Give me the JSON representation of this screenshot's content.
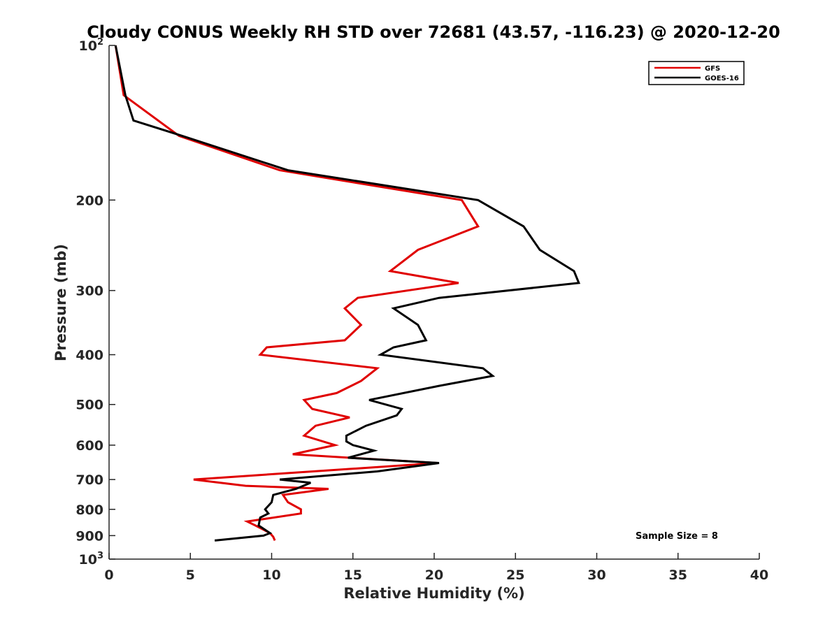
{
  "chart_data": {
    "type": "line",
    "title": "Cloudy CONUS Weekly RH STD over 72681 (43.57, -116.23) @ 2020-12-20",
    "xlabel": "Relative Humidity (%)",
    "ylabel": "Pressure (mb)",
    "xlim": [
      0,
      40
    ],
    "ylim": [
      100,
      1000
    ],
    "y_scale": "log",
    "y_reversed": true,
    "grid": false,
    "legend_position": "top-right",
    "x_ticks": [
      "0",
      "5",
      "10",
      "15",
      "20",
      "25",
      "30",
      "35",
      "40"
    ],
    "y_ticks": [
      {
        "value": 100,
        "base": "10",
        "exp": "2"
      },
      {
        "value": 200,
        "label": "200"
      },
      {
        "value": 300,
        "label": "300"
      },
      {
        "value": 400,
        "label": "400"
      },
      {
        "value": 500,
        "label": "500"
      },
      {
        "value": 600,
        "label": "600"
      },
      {
        "value": 700,
        "label": "700"
      },
      {
        "value": 800,
        "label": "800"
      },
      {
        "value": 900,
        "label": "900"
      },
      {
        "value": 1000,
        "base": "10",
        "exp": "3"
      }
    ],
    "annotation": "Sample Size = 8",
    "series": [
      {
        "name": "GFS",
        "color": "#e00000",
        "points": [
          [
            0.4,
            100
          ],
          [
            0.9,
            125
          ],
          [
            4.3,
            150
          ],
          [
            10.5,
            175
          ],
          [
            21.7,
            200
          ],
          [
            22.7,
            225
          ],
          [
            19.0,
            250
          ],
          [
            17.3,
            275
          ],
          [
            21.5,
            290
          ],
          [
            15.3,
            310
          ],
          [
            14.5,
            325
          ],
          [
            15.5,
            350
          ],
          [
            14.5,
            375
          ],
          [
            9.7,
            387
          ],
          [
            9.3,
            400
          ],
          [
            16.5,
            425
          ],
          [
            15.5,
            450
          ],
          [
            14.0,
            475
          ],
          [
            12.0,
            490
          ],
          [
            12.5,
            510
          ],
          [
            14.8,
            530
          ],
          [
            12.7,
            550
          ],
          [
            12.0,
            575
          ],
          [
            13.9,
            600
          ],
          [
            11.3,
            625
          ],
          [
            20.2,
            650
          ],
          [
            5.2,
            700
          ],
          [
            8.4,
            720
          ],
          [
            13.5,
            730
          ],
          [
            10.7,
            750
          ],
          [
            11.0,
            775
          ],
          [
            11.8,
            800
          ],
          [
            11.8,
            815
          ],
          [
            8.5,
            845
          ],
          [
            9.0,
            860
          ],
          [
            9.9,
            890
          ],
          [
            10.1,
            905
          ],
          [
            10.2,
            920
          ]
        ]
      },
      {
        "name": "GOES-16",
        "color": "#000000",
        "points": [
          [
            0.4,
            100
          ],
          [
            1.0,
            125
          ],
          [
            1.5,
            140
          ],
          [
            4.5,
            150
          ],
          [
            11.0,
            175
          ],
          [
            22.7,
            200
          ],
          [
            25.5,
            225
          ],
          [
            26.5,
            250
          ],
          [
            28.6,
            275
          ],
          [
            28.9,
            290
          ],
          [
            20.3,
            310
          ],
          [
            17.5,
            325
          ],
          [
            19.0,
            350
          ],
          [
            19.5,
            375
          ],
          [
            17.5,
            387
          ],
          [
            16.7,
            400
          ],
          [
            23.0,
            425
          ],
          [
            23.6,
            440
          ],
          [
            20.3,
            460
          ],
          [
            16.0,
            490
          ],
          [
            18.0,
            510
          ],
          [
            17.7,
            525
          ],
          [
            15.8,
            550
          ],
          [
            14.6,
            575
          ],
          [
            14.6,
            590
          ],
          [
            15.0,
            600
          ],
          [
            16.3,
            615
          ],
          [
            14.7,
            635
          ],
          [
            20.3,
            650
          ],
          [
            16.5,
            675
          ],
          [
            10.5,
            700
          ],
          [
            12.4,
            710
          ],
          [
            11.5,
            730
          ],
          [
            10.1,
            750
          ],
          [
            10.0,
            775
          ],
          [
            9.6,
            800
          ],
          [
            9.8,
            815
          ],
          [
            9.3,
            830
          ],
          [
            9.2,
            860
          ],
          [
            9.9,
            890
          ],
          [
            9.5,
            900
          ],
          [
            6.5,
            920
          ]
        ]
      }
    ]
  }
}
